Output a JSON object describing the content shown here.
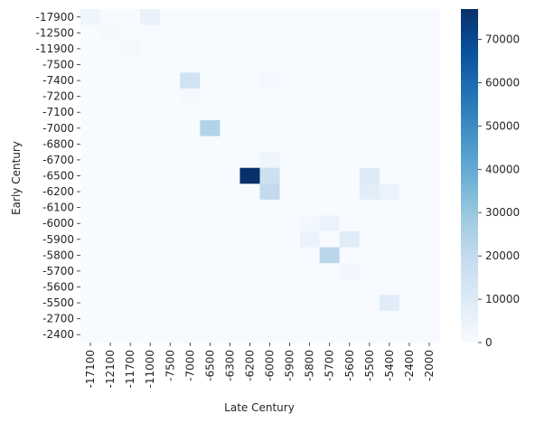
{
  "chart_data": {
    "type": "heatmap",
    "title": "",
    "xlabel": "Late Century",
    "ylabel": "Early Century",
    "x_categories": [
      "-17100",
      "-12100",
      "-11700",
      "-11000",
      "-7500",
      "-7000",
      "-6500",
      "-6300",
      "-6200",
      "-6000",
      "-5900",
      "-5800",
      "-5700",
      "-5600",
      "-5500",
      "-5400",
      "-2400",
      "-2000"
    ],
    "y_categories": [
      "-17900",
      "-12500",
      "-11900",
      "-7500",
      "-7400",
      "-7200",
      "-7100",
      "-7000",
      "-6800",
      "-6700",
      "-6500",
      "-6200",
      "-6100",
      "-6000",
      "-5900",
      "-5800",
      "-5700",
      "-5600",
      "-5500",
      "-2700",
      "-2400"
    ],
    "cells": [
      {
        "row": "-17900",
        "col": "-17100",
        "value": 3500
      },
      {
        "row": "-17900",
        "col": "-11000",
        "value": 5500
      },
      {
        "row": "-12500",
        "col": "-12100",
        "value": 1000
      },
      {
        "row": "-11900",
        "col": "-11700",
        "value": 1000
      },
      {
        "row": "-7500",
        "col": "-7000",
        "value": 500
      },
      {
        "row": "-7400",
        "col": "-7000",
        "value": 15000
      },
      {
        "row": "-7400",
        "col": "-6000",
        "value": 2000
      },
      {
        "row": "-7200",
        "col": "-7000",
        "value": 1000
      },
      {
        "row": "-7000",
        "col": "-6500",
        "value": 24000
      },
      {
        "row": "-6700",
        "col": "-6000",
        "value": 3500
      },
      {
        "row": "-6500",
        "col": "-6200",
        "value": 77000
      },
      {
        "row": "-6500",
        "col": "-6000",
        "value": 16500
      },
      {
        "row": "-6500",
        "col": "-5500",
        "value": 10500
      },
      {
        "row": "-6200",
        "col": "-6000",
        "value": 20000
      },
      {
        "row": "-6200",
        "col": "-5500",
        "value": 8500
      },
      {
        "row": "-6200",
        "col": "-5400",
        "value": 5000
      },
      {
        "row": "-6000",
        "col": "-5800",
        "value": 2000
      },
      {
        "row": "-6000",
        "col": "-5700",
        "value": 5000
      },
      {
        "row": "-5900",
        "col": "-5800",
        "value": 5000
      },
      {
        "row": "-5900",
        "col": "-5600",
        "value": 9000
      },
      {
        "row": "-5800",
        "col": "-5700",
        "value": 22000
      },
      {
        "row": "-5700",
        "col": "-5600",
        "value": 2500
      },
      {
        "row": "-5500",
        "col": "-5400",
        "value": 9000
      }
    ],
    "colorbar": {
      "vmin": 0,
      "vmax": 77000,
      "ticks": [
        0,
        10000,
        20000,
        30000,
        40000,
        50000,
        60000,
        70000
      ],
      "colormap": "Blues",
      "colormap_stops": [
        "#f7fbff",
        "#deebf7",
        "#c6dbef",
        "#9ecae1",
        "#6baed6",
        "#4292c6",
        "#2171b5",
        "#08519c",
        "#08306b"
      ]
    },
    "grid": false
  }
}
